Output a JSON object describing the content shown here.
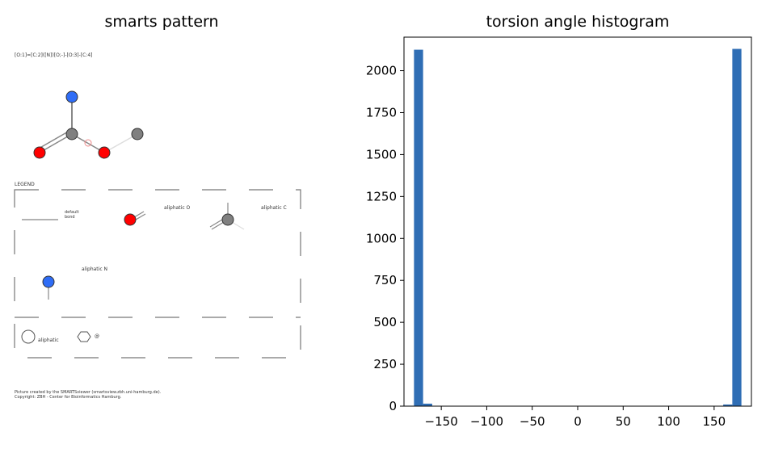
{
  "left_panel": {
    "title": "smarts pattern",
    "smarts": "[O:1]=[C:2]([N])[O;-]-[O:3]-[C:4]",
    "legend": {
      "heading": "LEGEND",
      "default_bond": "default\nbond",
      "aliphatic_o": "aliphatic O",
      "aliphatic_c": "aliphatic C",
      "aliphatic_n": "aliphatic N",
      "aliphatic": "aliphatic",
      "at": "@"
    },
    "credit": "Picture created by the SMARTSviewer (smartsview.zbh.uni-hamburg.de).\nCopyright: ZBH - Center for Bioinformatics Hamburg.",
    "colors": {
      "oxygen": "#ff0000",
      "nitrogen": "#2f6df6",
      "carbon": "#808080"
    }
  },
  "chart_data": {
    "type": "bar",
    "title": "torsion angle histogram",
    "xlabel": "",
    "ylabel": "",
    "xlim": [
      -191,
      191
    ],
    "ylim": [
      0,
      2200
    ],
    "xticks": [
      -150,
      -100,
      -50,
      0,
      50,
      100,
      150
    ],
    "yticks": [
      0,
      250,
      500,
      750,
      1000,
      1250,
      1500,
      1750,
      2000
    ],
    "bin_edges": [
      -180,
      -170,
      -160,
      -150,
      -140,
      -130,
      -120,
      -110,
      -100,
      -90,
      -80,
      -70,
      -60,
      -50,
      -40,
      -30,
      -20,
      -10,
      0,
      10,
      20,
      30,
      40,
      50,
      60,
      70,
      80,
      90,
      100,
      110,
      120,
      130,
      140,
      150,
      160,
      170,
      180
    ],
    "values": [
      2125,
      15,
      0,
      0,
      0,
      0,
      0,
      0,
      0,
      0,
      0,
      0,
      0,
      0,
      0,
      0,
      0,
      0,
      0,
      0,
      0,
      0,
      0,
      0,
      0,
      0,
      0,
      0,
      0,
      0,
      0,
      0,
      0,
      0,
      10,
      2130
    ],
    "color": "#2f6eb5",
    "grid": false,
    "legend": "none"
  }
}
